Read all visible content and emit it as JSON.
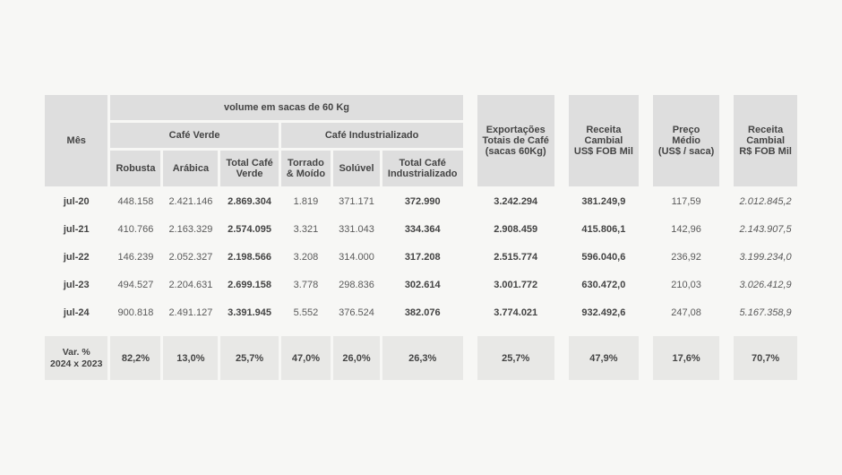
{
  "headers": {
    "mes": "Mês",
    "volume_title": "volume em sacas de 60 Kg",
    "cafe_verde": "Café Verde",
    "cafe_ind": "Café Industrializado",
    "robusta": "Robusta",
    "arabica": "Arábica",
    "total_verde_l1": "Total Café",
    "total_verde_l2": "Verde",
    "torrado_l1": "Torrado",
    "torrado_l2": "& Moído",
    "soluvel": "Solúvel",
    "total_ind_l1": "Total Café",
    "total_ind_l2": "Industrializado",
    "export_l1": "Exportações",
    "export_l2": "Totais de Café",
    "export_l3": "(sacas 60Kg)",
    "receita_usd_l1": "Receita",
    "receita_usd_l2": "Cambial",
    "receita_usd_l3": "US$ FOB Mil",
    "preco_l1": "Preço",
    "preco_l2": "Médio",
    "preco_l3": "(US$ / saca)",
    "receita_brl_l1": "Receita",
    "receita_brl_l2": "Cambial",
    "receita_brl_l3": "R$ FOB Mil"
  },
  "rows": [
    {
      "mes": "jul-20",
      "robusta": "448.158",
      "arabica": "2.421.146",
      "total_verde": "2.869.304",
      "torrado": "1.819",
      "soluvel": "371.171",
      "total_ind": "372.990",
      "export": "3.242.294",
      "receita_usd": "381.249,9",
      "preco": "117,59",
      "receita_brl": "2.012.845,2"
    },
    {
      "mes": "jul-21",
      "robusta": "410.766",
      "arabica": "2.163.329",
      "total_verde": "2.574.095",
      "torrado": "3.321",
      "soluvel": "331.043",
      "total_ind": "334.364",
      "export": "2.908.459",
      "receita_usd": "415.806,1",
      "preco": "142,96",
      "receita_brl": "2.143.907,5"
    },
    {
      "mes": "jul-22",
      "robusta": "146.239",
      "arabica": "2.052.327",
      "total_verde": "2.198.566",
      "torrado": "3.208",
      "soluvel": "314.000",
      "total_ind": "317.208",
      "export": "2.515.774",
      "receita_usd": "596.040,6",
      "preco": "236,92",
      "receita_brl": "3.199.234,0"
    },
    {
      "mes": "jul-23",
      "robusta": "494.527",
      "arabica": "2.204.631",
      "total_verde": "2.699.158",
      "torrado": "3.778",
      "soluvel": "298.836",
      "total_ind": "302.614",
      "export": "3.001.772",
      "receita_usd": "630.472,0",
      "preco": "210,03",
      "receita_brl": "3.026.412,9"
    },
    {
      "mes": "jul-24",
      "robusta": "900.818",
      "arabica": "2.491.127",
      "total_verde": "3.391.945",
      "torrado": "5.552",
      "soluvel": "376.524",
      "total_ind": "382.076",
      "export": "3.774.021",
      "receita_usd": "932.492,6",
      "preco": "247,08",
      "receita_brl": "5.167.358,9"
    }
  ],
  "var": {
    "label_l1": "Var. %",
    "label_l2": "2024 x 2023",
    "robusta": "82,2%",
    "arabica": "13,0%",
    "total_verde": "25,7%",
    "torrado": "47,0%",
    "soluvel": "26,0%",
    "total_ind": "26,3%",
    "export": "25,7%",
    "receita_usd": "47,9%",
    "preco": "17,6%",
    "receita_brl": "70,7%"
  },
  "style": {
    "type": "table",
    "background_color": "#f7f7f5",
    "header_bg": "#dedede",
    "var_bg": "#e8e8e6",
    "text_color": "#5a5a5a",
    "bold_color": "#444444",
    "font_size_pt": 11
  }
}
